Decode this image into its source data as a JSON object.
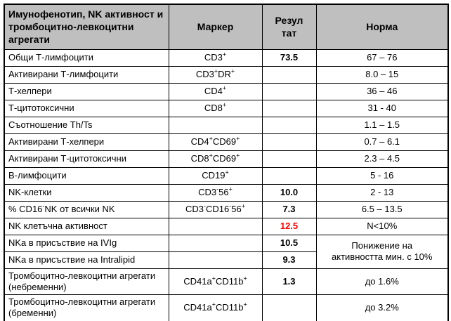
{
  "colors": {
    "header_bg": "#bfbfbf",
    "border": "#000000",
    "result_alert": "#ff0000",
    "text": "#000000"
  },
  "table": {
    "header": {
      "parameter": "Имунофенотип, NK активност и тромбоцитно-левкоцитни агрегати",
      "marker": "Маркер",
      "result": "Резултат",
      "norm": "Норма"
    },
    "rows": [
      {
        "name": "Общи Т-лимфоцити",
        "marker": "CD3⁺",
        "result": "73.5",
        "norm": "67 – 76"
      },
      {
        "name": "Активирани Т-лимфоцити",
        "marker": "CD3⁺DR⁺",
        "result": "",
        "norm": "8.0 – 15"
      },
      {
        "name": "Т-хелпери",
        "marker": "CD4⁺",
        "result": "",
        "norm": "36 – 46"
      },
      {
        "name": "Т-цитотоксични",
        "marker": "CD8⁺",
        "result": "",
        "norm": "31 - 40"
      },
      {
        "name": "Съотношение Th/Ts",
        "marker": "",
        "result": "",
        "norm": "1.1 – 1.5"
      },
      {
        "name": "Активирани Т-хелпери",
        "marker": "CD4⁺CD69⁺",
        "result": "",
        "norm": "0.7 – 6.1"
      },
      {
        "name": "Активирани Т-цитотоксични",
        "marker": "CD8⁺CD69⁺",
        "result": "",
        "norm": "2.3 – 4.5"
      },
      {
        "name": "В-лимфоцити",
        "marker": "CD19⁺",
        "result": "",
        "norm": "5 - 16"
      },
      {
        "name": "NK-клетки",
        "marker": "CD3⁻56⁺",
        "result": "10.0",
        "norm": "2 - 13"
      },
      {
        "name": "% CD16⁻NK от всички NK",
        "marker": "CD3⁻CD16⁻56⁺",
        "result": "7.3",
        "norm": "6.5 – 13.5"
      },
      {
        "name": "NK клетъчна активност",
        "marker": "",
        "result": "12.5",
        "norm": "N<10%"
      },
      {
        "name": "NKa в присъствие на IVIg",
        "marker": "",
        "result": "10.5",
        "norm": "Понижение на активността мин. с 10%"
      },
      {
        "name": "NKa в присъствие на Intralipid",
        "marker": "",
        "result": "9.3",
        "norm": ""
      },
      {
        "name": "Тромбоцитно-левкоцитни агрегати (небременни)",
        "marker": "CD41a⁺CD11b⁺",
        "result": "1.3",
        "norm": "до 1.6%"
      },
      {
        "name": "Тромбоцитно-левкоцитни агрегати (бременни)",
        "marker": "CD41a⁺CD11b⁺",
        "result": "",
        "norm": "до 3.2%"
      }
    ]
  }
}
